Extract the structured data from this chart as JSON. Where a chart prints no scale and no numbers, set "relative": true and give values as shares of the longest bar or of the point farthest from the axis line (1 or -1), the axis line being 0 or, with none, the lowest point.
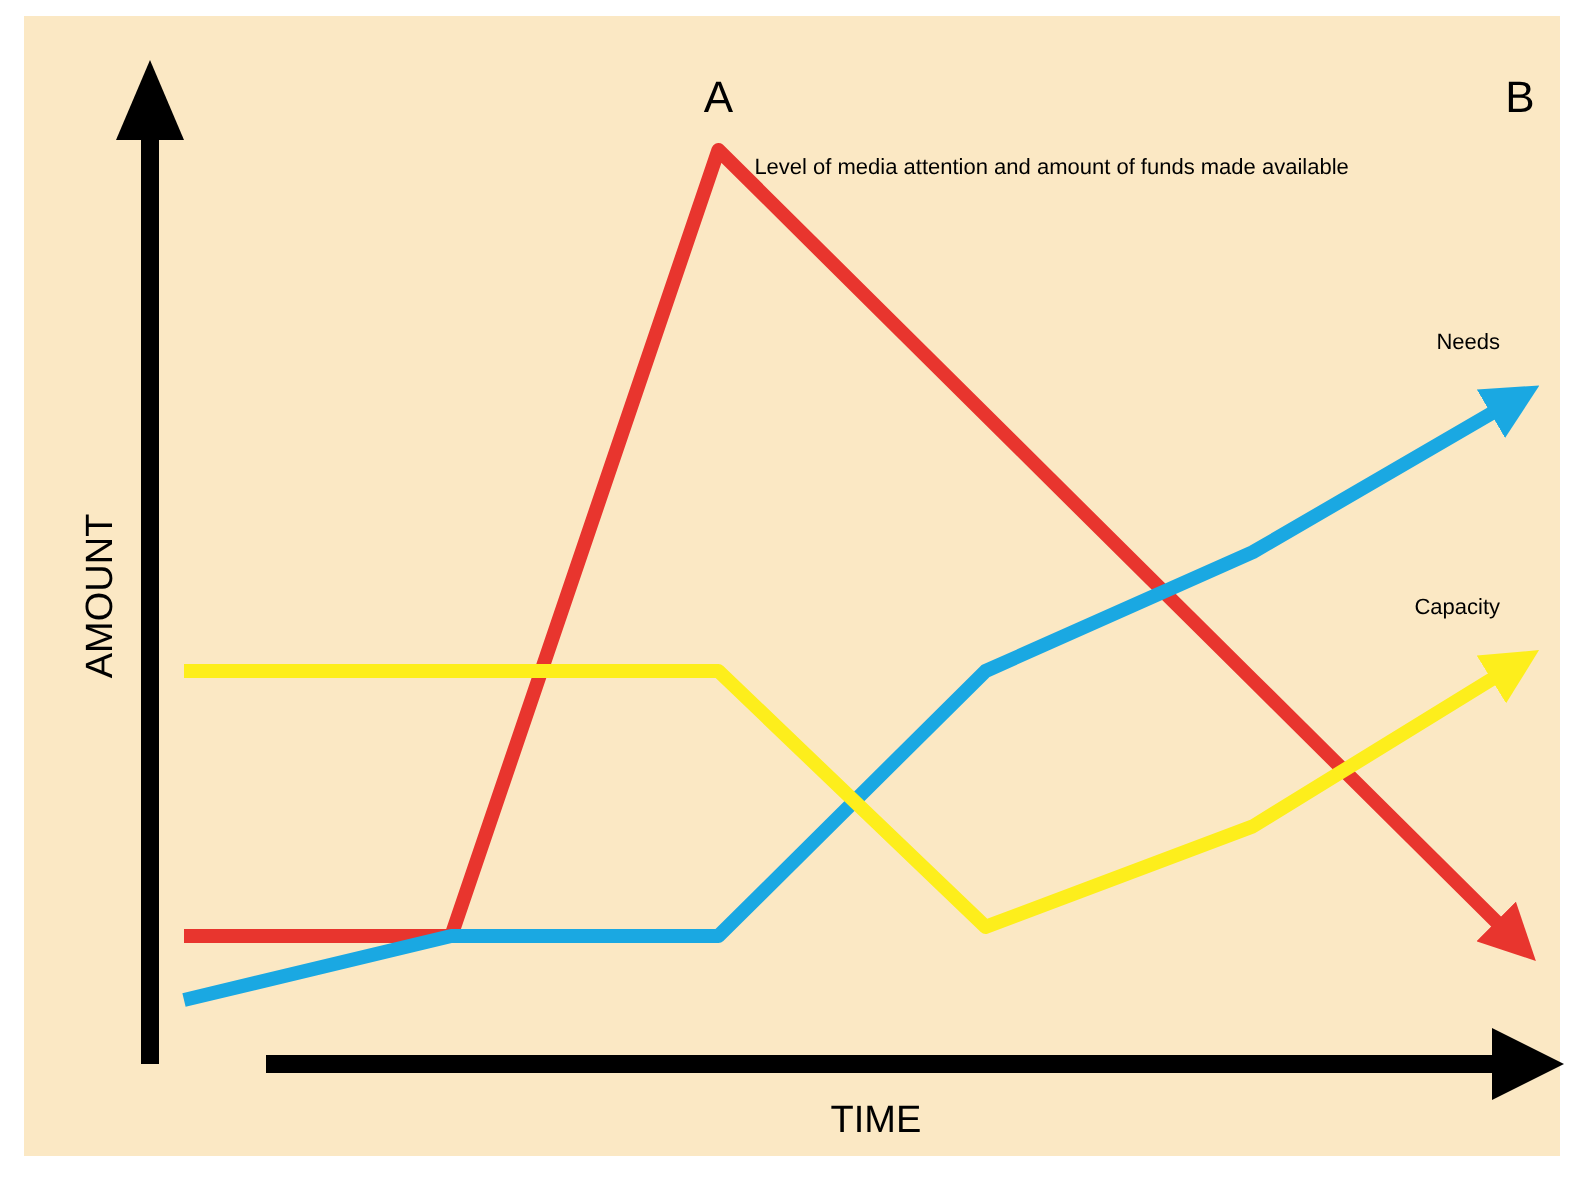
{
  "chart_data": {
    "type": "line",
    "relative": true,
    "xlabel": "TIME",
    "ylabel": "AMOUNT",
    "categories": [
      null,
      null,
      null,
      null,
      null,
      null
    ],
    "line_style": "solid",
    "annotations": [
      "A",
      "B"
    ],
    "series": [
      {
        "name": "Level of media attention and amount of funds made available",
        "color": "#e8352e",
        "values": [
          0.14,
          0.14,
          1.0,
          0.71,
          0.42,
          0.13
        ]
      },
      {
        "name": "Needs",
        "color": "#1aa8e2",
        "values": [
          0.07,
          0.14,
          0.14,
          0.43,
          0.56,
          0.73
        ]
      },
      {
        "name": "Capacity",
        "color": "#fdee1c",
        "values": [
          0.43,
          0.43,
          0.43,
          0.15,
          0.26,
          0.44
        ]
      }
    ]
  }
}
